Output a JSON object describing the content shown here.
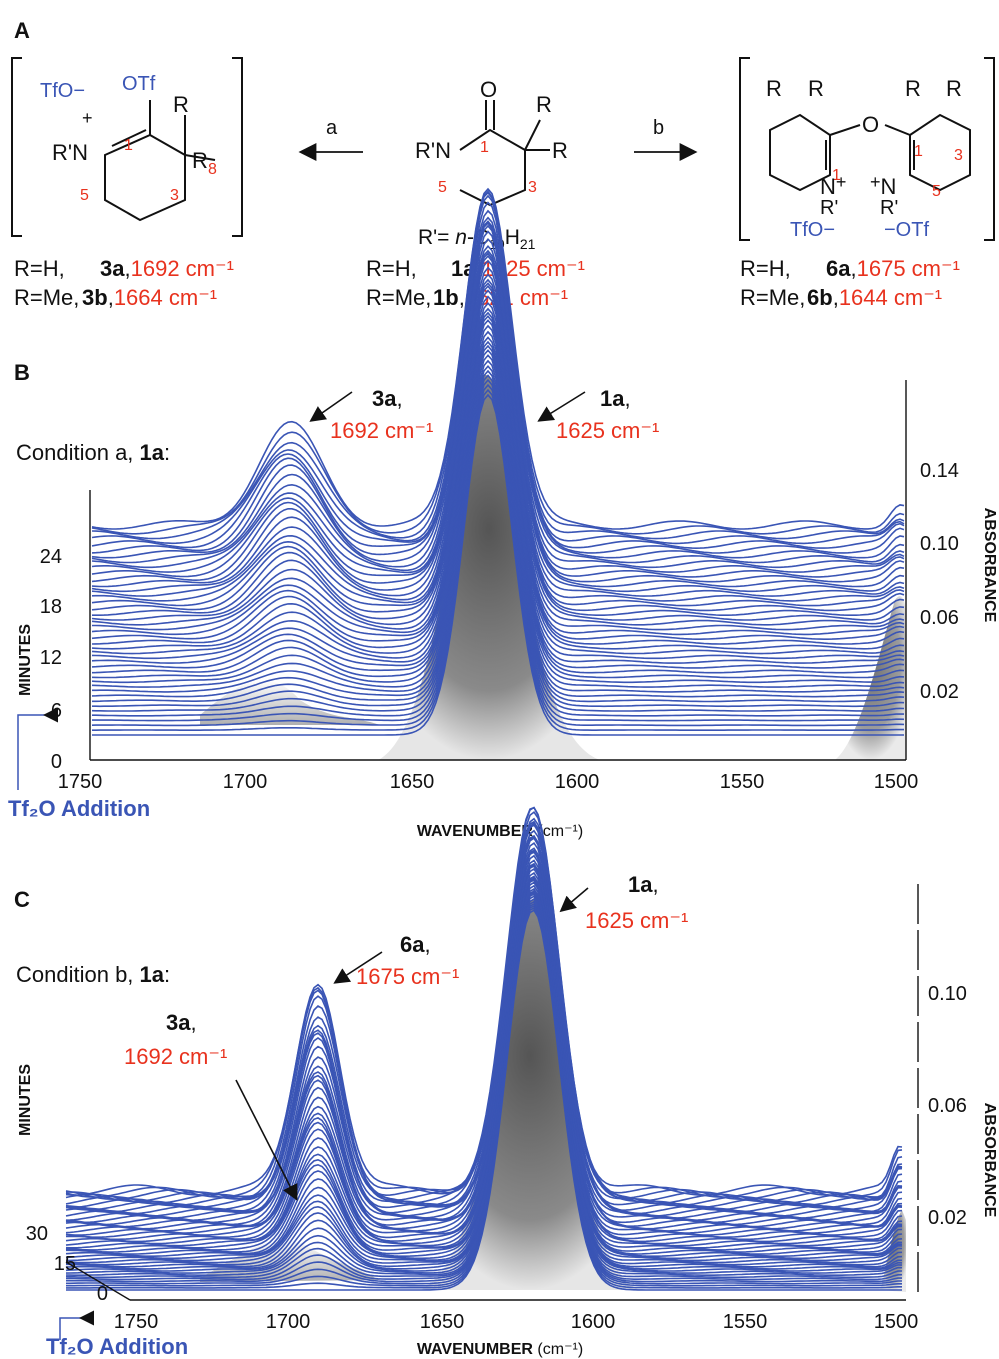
{
  "panel_a": {
    "label": "A",
    "reaction_a": "a",
    "reaction_b": "b",
    "center": {
      "rprime": "R'= ",
      "rprime_italic": "n",
      "rprime_tail": "-C",
      "sub10": "10",
      "h": "H",
      "sub21": "21",
      "line1_prefix": "R=H,",
      "line1_compound": "1a",
      "line1_wn": "1625 cm⁻¹",
      "line2_prefix": "R=Me,",
      "line2_compound": "1b",
      "line2_wn": "1621 cm⁻¹"
    },
    "left": {
      "line1_prefix": "R=H,",
      "line1_compound": "3a",
      "line1_wn": "1692 cm⁻¹",
      "line2_prefix": "R=Me,",
      "line2_compound": "3b",
      "line2_wn": "1664 cm⁻¹"
    },
    "right": {
      "line1_prefix": "R=H,",
      "line1_compound": "6a",
      "line1_wn": "1675 cm⁻¹",
      "line2_prefix": "R=Me,",
      "line2_compound": "6b",
      "line2_wn": "1644 cm⁻¹"
    },
    "structure_labels": {
      "O": "O",
      "OTf": "OTf",
      "TfO_minus": "TfO−",
      "minus_OTf": "−OTf",
      "R": "R",
      "RN": "R'N",
      "N": "N",
      "Rp": "R'",
      "plus": "+",
      "n1": "1",
      "n3": "3",
      "n5": "5",
      "n8": "8"
    }
  },
  "panel_b": {
    "label": "B",
    "condition": "Condition a, ",
    "condition_compound": "1a",
    "condition_colon": ":",
    "peak1_compound": "3a",
    "peak1_comma": ",",
    "peak1_wn": "1692 cm⁻¹",
    "peak2_compound": "1a",
    "peak2_comma": ",",
    "peak2_wn": "1625 cm⁻¹",
    "y_left_label": "MINUTES",
    "y_right_label": "ABSORBANCE",
    "x_label": "WAVENUMBER",
    "x_unit": "(cm⁻¹)",
    "addition": "Tf₂O Addition",
    "x_ticks": [
      "1750",
      "1700",
      "1650",
      "1600",
      "1550",
      "1500"
    ],
    "minute_ticks": [
      "24",
      "18",
      "12",
      "6",
      "0"
    ],
    "abs_ticks": [
      "0.14",
      "0.10",
      "0.06",
      "0.02"
    ]
  },
  "panel_c": {
    "label": "C",
    "condition": "Condition b, ",
    "condition_compound": "1a",
    "condition_colon": ":",
    "peak1_compound": "6a",
    "peak1_comma": ",",
    "peak1_wn": "1675 cm⁻¹",
    "peak2_compound": "1a",
    "peak2_comma": ",",
    "peak2_wn": "1625 cm⁻¹",
    "peak3_compound": "3a",
    "peak3_comma": ",",
    "peak3_wn": "1692 cm⁻¹",
    "y_left_label": "MINUTES",
    "y_right_label": "ABSORBANCE",
    "x_label": "WAVENUMBER",
    "x_unit": "(cm⁻¹)",
    "addition": "Tf₂O Addition",
    "x_ticks": [
      "1750",
      "1700",
      "1650",
      "1600",
      "1550",
      "1500"
    ],
    "minute_ticks": [
      "30",
      "15",
      "0"
    ],
    "abs_ticks": [
      "0.10",
      "0.06",
      "0.02"
    ]
  },
  "colors": {
    "trace": "#3a55b5",
    "highlight": "#e8321e",
    "shade": "#6e6e6e"
  }
}
